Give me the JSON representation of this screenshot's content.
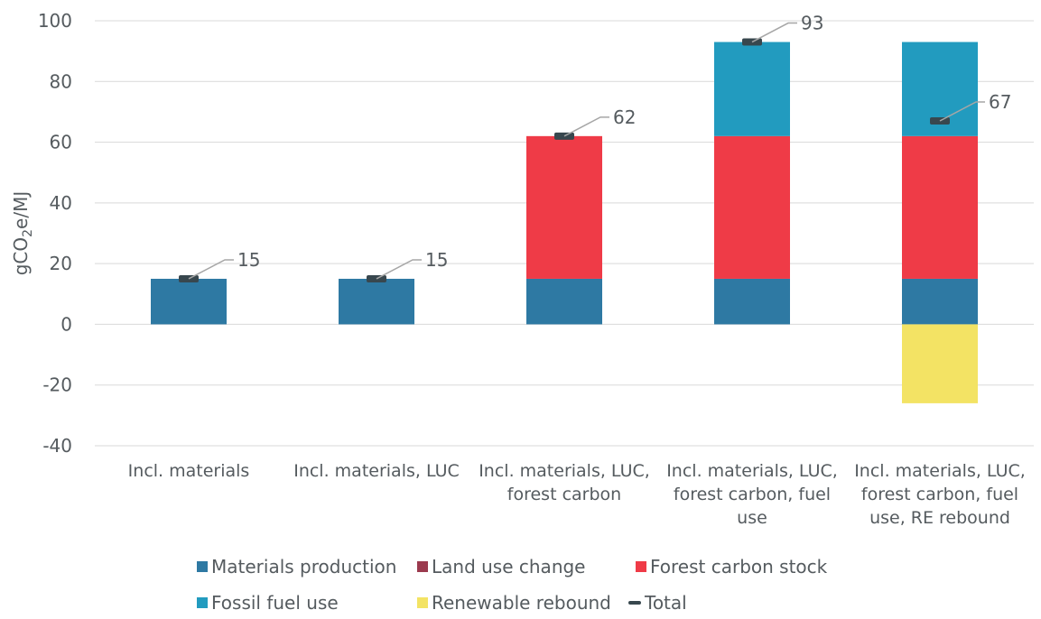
{
  "chart_data": {
    "type": "bar",
    "stacked": true,
    "ylabel_main": "gCO",
    "ylabel_sub": "2",
    "ylabel_tail": "e/MJ",
    "ylim": [
      -40,
      100
    ],
    "yticks": [
      100,
      80,
      60,
      40,
      20,
      0,
      -20,
      -40
    ],
    "grid": true,
    "legend_position": "bottom",
    "categories": [
      [
        "Incl. materials"
      ],
      [
        "Incl. materials, LUC"
      ],
      [
        "Incl. materials, LUC,",
        "forest carbon"
      ],
      [
        "Incl. materials, LUC,",
        "forest carbon, fuel",
        "use"
      ],
      [
        "Incl. materials, LUC,",
        "forest carbon, fuel",
        "use, RE rebound"
      ]
    ],
    "series": [
      {
        "name": "Materials production",
        "color": "#2e79a3",
        "values": [
          15,
          15,
          15,
          15,
          15
        ]
      },
      {
        "name": "Land use change",
        "color": "#9b3a4e",
        "values": [
          0,
          0,
          0,
          0,
          0
        ]
      },
      {
        "name": "Forest carbon stock",
        "color": "#ef3b47",
        "values": [
          0,
          0,
          47,
          47,
          47
        ]
      },
      {
        "name": "Fossil fuel use",
        "color": "#229bbf",
        "values": [
          0,
          0,
          0,
          31,
          31
        ]
      },
      {
        "name": "Renewable rebound",
        "color": "#f3e364",
        "values": [
          0,
          0,
          0,
          0,
          -26
        ]
      }
    ],
    "total": {
      "name": "Total",
      "color": "#38474e",
      "values": [
        15,
        15,
        62,
        93,
        67
      ],
      "labels": [
        "15",
        "15",
        "62",
        "93",
        "67"
      ]
    }
  }
}
